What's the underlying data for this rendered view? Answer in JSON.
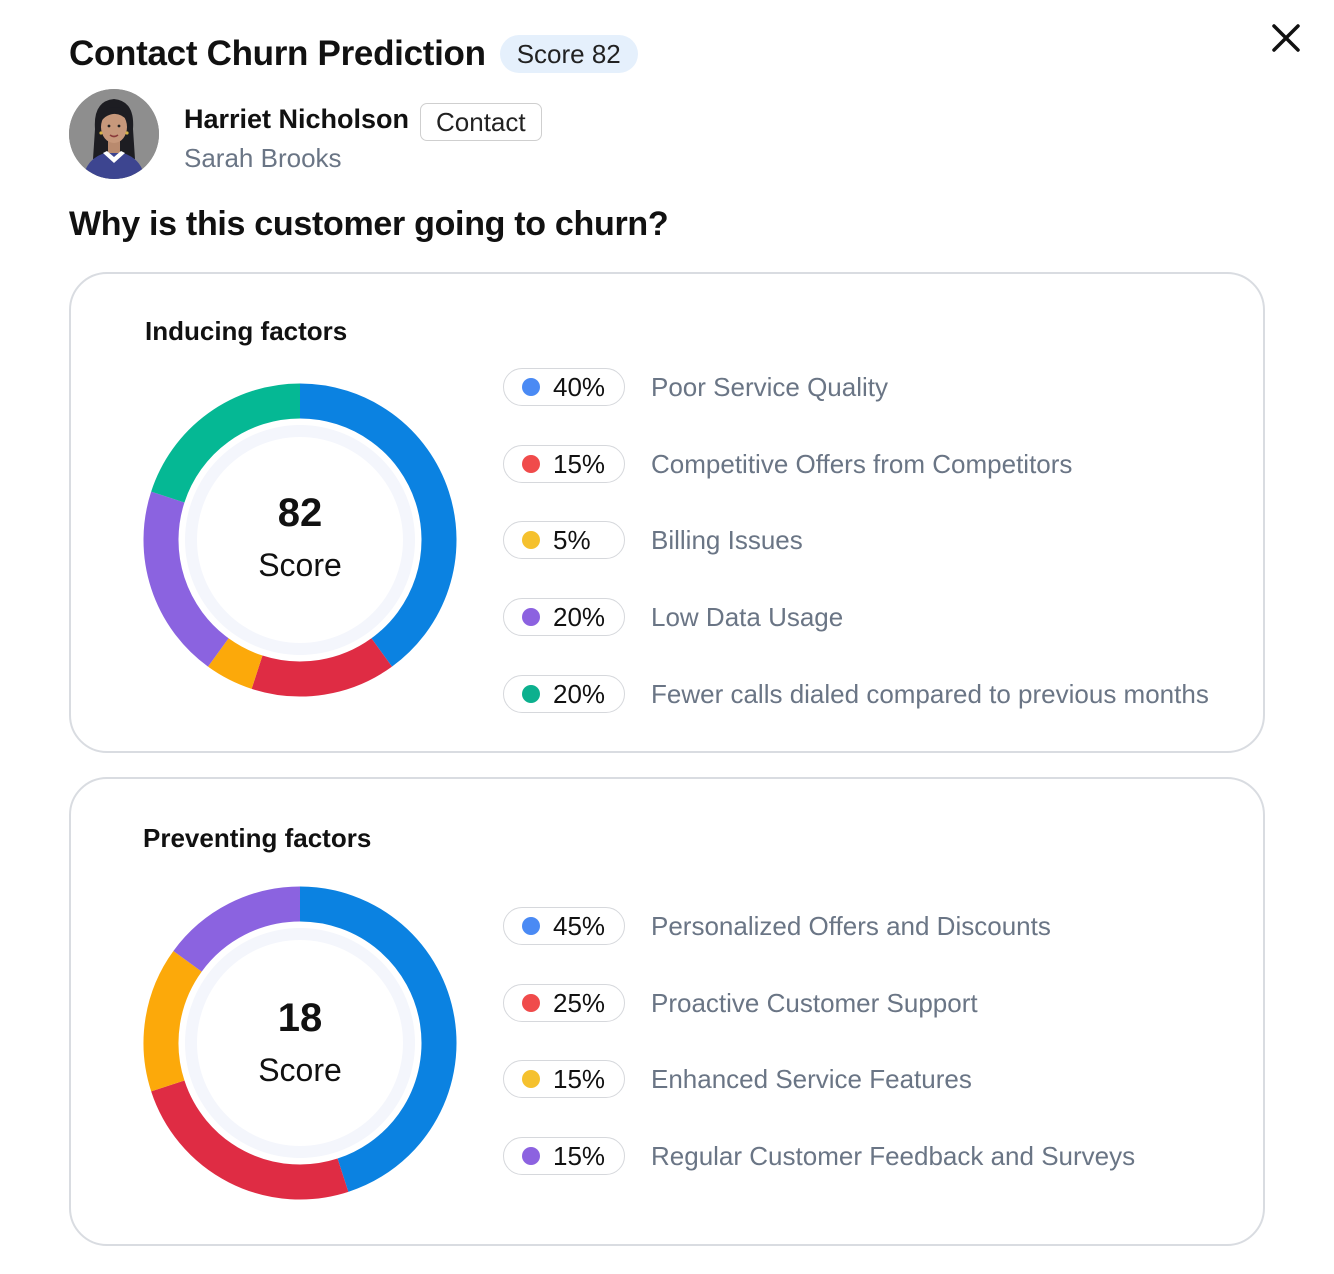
{
  "header": {
    "title": "Contact Churn Prediction",
    "score_badge": "Score 82",
    "close_icon": "close-icon"
  },
  "contact": {
    "name": "Harriet Nicholson",
    "type_tag": "Contact",
    "owner": "Sarah Brooks",
    "avatar_icon": "avatar-illustration"
  },
  "question": "Why is this customer going to churn?",
  "inducing": {
    "title": "Inducing factors",
    "score": "82",
    "score_label": "Score",
    "factors": [
      {
        "pct": "40%",
        "label": "Poor Service Quality",
        "color": "#4a8af4"
      },
      {
        "pct": "15%",
        "label": "Competitive Offers from Competitors",
        "color": "#f04b4b"
      },
      {
        "pct": "5%",
        "label": "Billing Issues",
        "color": "#f5c12e"
      },
      {
        "pct": "20%",
        "label": "Low Data Usage",
        "color": "#8c62e0"
      },
      {
        "pct": "20%",
        "label": "Fewer calls dialed compared to previous months",
        "color": "#0cb08e"
      }
    ]
  },
  "preventing": {
    "title": "Preventing factors",
    "score": "18",
    "score_label": "Score",
    "factors": [
      {
        "pct": "45%",
        "label": "Personalized Offers and Discounts",
        "color": "#4a8af4"
      },
      {
        "pct": "25%",
        "label": "Proactive Customer Support",
        "color": "#f04b4b"
      },
      {
        "pct": "15%",
        "label": "Enhanced Service Features",
        "color": "#f5c12e"
      },
      {
        "pct": "15%",
        "label": "Regular Customer Feedback and Surveys",
        "color": "#8c62e0"
      }
    ]
  },
  "chart_data": [
    {
      "type": "pie",
      "title": "Inducing factors",
      "categories": [
        "Poor Service Quality",
        "Competitive Offers from Competitors",
        "Billing Issues",
        "Low Data Usage",
        "Fewer calls dialed compared to previous months"
      ],
      "values": [
        40,
        15,
        5,
        20,
        20
      ],
      "colors": [
        "#0b82e1",
        "#df2c44",
        "#fca90a",
        "#8b63e0",
        "#05b894"
      ]
    },
    {
      "type": "pie",
      "title": "Preventing factors",
      "categories": [
        "Personalized Offers and Discounts",
        "Proactive Customer Support",
        "Enhanced Service Features",
        "Regular Customer Feedback and Surveys"
      ],
      "values": [
        45,
        25,
        15,
        15
      ],
      "colors": [
        "#0b82e1",
        "#df2c44",
        "#fca90a",
        "#8b63e0"
      ]
    }
  ]
}
